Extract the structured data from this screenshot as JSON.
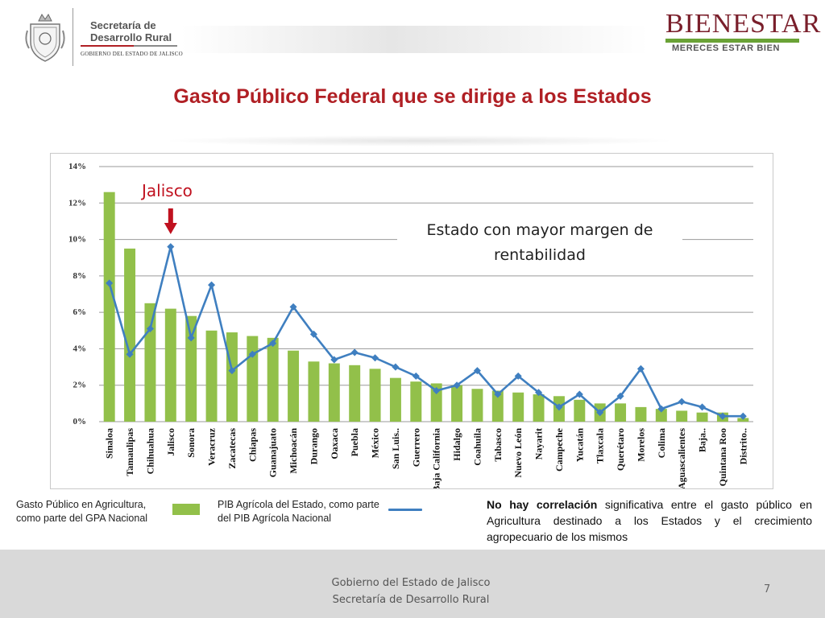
{
  "header": {
    "dept_line1": "Secretaría de",
    "dept_line2": "Desarrollo Rural",
    "gov_line": "GOBIERNO DEL ESTADO DE JALISCO",
    "brand_word": "BIENESTAR",
    "brand_tagline": "MERECES ESTAR BIEN"
  },
  "slide_title": "Gasto Público Federal que se dirige a los Estados",
  "annotation": "Estado con mayor margen de rentabilidad",
  "highlight_label": "Jalisco",
  "legend": {
    "bar_label": "Gasto Público en Agricultura, como parte del GPA Nacional",
    "line_label": "PIB Agrícola del Estado, como parte del PIB Agrícola Nacional"
  },
  "note": {
    "bold": "No hay correlación",
    "rest": " significativa entre el gasto público en Agricultura destinado a los Estados y el crecimiento agropecuario de los mismos"
  },
  "footer": {
    "line1": "Gobierno del Estado de Jalisco",
    "line2": "Secretaría de Desarrollo Rural",
    "page": "7"
  },
  "colors": {
    "bar": "#92c04a",
    "line": "#3f7fc0",
    "title": "#b01f24",
    "highlight": "#c0111f"
  },
  "chart_data": {
    "type": "bar",
    "categories": [
      "Sinaloa",
      "Tamaulipas",
      "Chihuahua",
      "Jalisco",
      "Sonora",
      "Veracruz",
      "Zacatecas",
      "Chiapas",
      "Guanajuato",
      "Michoacán",
      "Durango",
      "Oaxaca",
      "Puebla",
      "México",
      "San Luis..",
      "Guerrero",
      "Baja California",
      "Hidalgo",
      "Coahuila",
      "Tabasco",
      "Nuevo León",
      "Nayarit",
      "Campeche",
      "Yucatán",
      "Tlaxcala",
      "Querétaro",
      "Morelos",
      "Colima",
      "Aguascalientes",
      "Baja..",
      "Quintana Roo",
      "Distrito.."
    ],
    "series": [
      {
        "name": "Gasto Público en Agricultura, como parte del GPA Nacional",
        "kind": "bar",
        "values": [
          12.6,
          9.5,
          6.5,
          6.2,
          5.8,
          5.0,
          4.9,
          4.7,
          4.6,
          3.9,
          3.3,
          3.2,
          3.1,
          2.9,
          2.4,
          2.2,
          2.1,
          2.0,
          1.8,
          1.7,
          1.6,
          1.5,
          1.4,
          1.2,
          1.0,
          1.0,
          0.8,
          0.7,
          0.6,
          0.5,
          0.5,
          0.2
        ]
      },
      {
        "name": "PIB Agrícola del Estado, como parte del PIB Agrícola Nacional",
        "kind": "line",
        "values": [
          7.6,
          3.7,
          5.1,
          9.6,
          4.6,
          7.5,
          2.8,
          3.7,
          4.3,
          6.3,
          4.8,
          3.4,
          3.8,
          3.5,
          3.0,
          2.5,
          1.7,
          2.0,
          2.8,
          1.5,
          2.5,
          1.6,
          0.8,
          1.5,
          0.5,
          1.4,
          2.9,
          0.7,
          1.1,
          0.8,
          0.3,
          0.3
        ]
      }
    ],
    "y_ticks": [
      "0%",
      "2%",
      "4%",
      "6%",
      "8%",
      "10%",
      "12%",
      "14%"
    ],
    "ylim": [
      0,
      14
    ],
    "grid": true,
    "highlight_category": "Jalisco"
  }
}
